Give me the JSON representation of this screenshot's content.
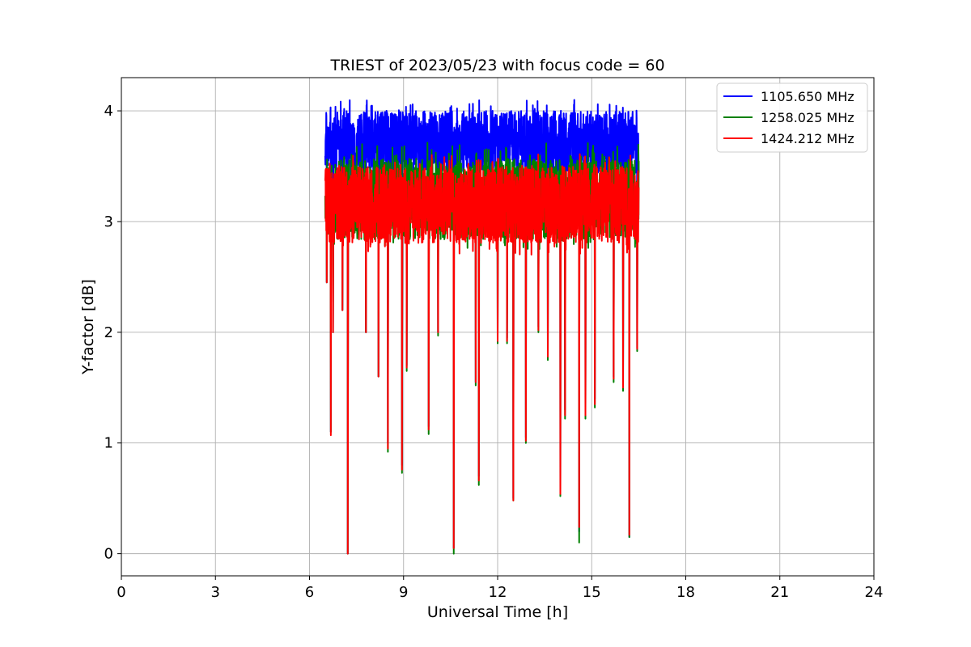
{
  "chart_data": {
    "type": "line",
    "title": "TRIEST of 2023/05/23 with focus code = 60",
    "xlabel": "Universal Time [h]",
    "ylabel": "Y-factor [dB]",
    "xlim": [
      0,
      24
    ],
    "ylim": [
      -0.2,
      4.3
    ],
    "xticks": [
      0,
      3,
      6,
      9,
      12,
      15,
      18,
      21,
      24
    ],
    "yticks": [
      0,
      1,
      2,
      3,
      4
    ],
    "grid": true,
    "legend_position": "top-right",
    "time_range": [
      6.5,
      16.5
    ],
    "series": [
      {
        "name": "1105.650 MHz",
        "color": "#0000ff",
        "baseline": 3.72,
        "noise_range": [
          3.35,
          4.1
        ],
        "dips": [
          [
            6.55,
            2.45
          ],
          [
            6.68,
            1.1
          ],
          [
            6.75,
            2.0
          ],
          [
            7.05,
            2.2
          ],
          [
            7.22,
            0.0
          ],
          [
            7.8,
            2.0
          ],
          [
            8.2,
            1.6
          ],
          [
            8.5,
            1.0
          ],
          [
            8.95,
            0.8
          ],
          [
            9.1,
            1.7
          ],
          [
            9.8,
            1.15
          ],
          [
            10.1,
            2.0
          ],
          [
            10.6,
            0.05
          ],
          [
            11.3,
            1.55
          ],
          [
            11.4,
            0.7
          ],
          [
            12.0,
            1.95
          ],
          [
            12.3,
            1.95
          ],
          [
            12.5,
            0.5
          ],
          [
            12.9,
            1.05
          ],
          [
            13.3,
            2.05
          ],
          [
            13.6,
            1.8
          ],
          [
            14.0,
            0.55
          ],
          [
            14.15,
            1.3
          ],
          [
            14.6,
            0.2
          ],
          [
            14.8,
            1.3
          ],
          [
            15.1,
            1.4
          ],
          [
            15.7,
            1.6
          ],
          [
            16.0,
            1.5
          ],
          [
            16.2,
            0.15
          ],
          [
            16.45,
            1.85
          ]
        ]
      },
      {
        "name": "1258.025 MHz",
        "color": "#008000",
        "baseline": 3.2,
        "noise_range": [
          2.75,
          3.72
        ],
        "dips": [
          [
            6.55,
            2.45
          ],
          [
            6.68,
            1.1
          ],
          [
            6.75,
            2.0
          ],
          [
            7.05,
            2.2
          ],
          [
            7.22,
            0.0
          ],
          [
            7.8,
            2.0
          ],
          [
            8.2,
            1.6
          ],
          [
            8.5,
            0.92
          ],
          [
            8.95,
            0.73
          ],
          [
            9.1,
            1.65
          ],
          [
            9.8,
            1.08
          ],
          [
            10.1,
            1.97
          ],
          [
            10.6,
            0.0
          ],
          [
            11.3,
            1.52
          ],
          [
            11.4,
            0.62
          ],
          [
            12.0,
            1.9
          ],
          [
            12.3,
            1.9
          ],
          [
            12.5,
            0.48
          ],
          [
            12.9,
            1.0
          ],
          [
            13.3,
            2.0
          ],
          [
            13.6,
            1.75
          ],
          [
            14.0,
            0.52
          ],
          [
            14.15,
            1.22
          ],
          [
            14.6,
            0.1
          ],
          [
            14.8,
            1.22
          ],
          [
            15.1,
            1.32
          ],
          [
            15.7,
            1.55
          ],
          [
            16.0,
            1.47
          ],
          [
            16.2,
            0.15
          ],
          [
            16.45,
            1.83
          ]
        ]
      },
      {
        "name": "1424.212 MHz",
        "color": "#ff0000",
        "baseline": 3.15,
        "noise_range": [
          2.7,
          3.62
        ],
        "dips": [
          [
            6.55,
            2.45
          ],
          [
            6.68,
            1.07
          ],
          [
            6.75,
            2.0
          ],
          [
            7.05,
            2.2
          ],
          [
            7.22,
            0.0
          ],
          [
            7.8,
            2.0
          ],
          [
            8.2,
            1.6
          ],
          [
            8.5,
            0.95
          ],
          [
            8.95,
            0.76
          ],
          [
            9.1,
            1.68
          ],
          [
            9.8,
            1.12
          ],
          [
            10.1,
            2.0
          ],
          [
            10.6,
            0.05
          ],
          [
            11.3,
            1.55
          ],
          [
            11.4,
            0.66
          ],
          [
            12.0,
            1.92
          ],
          [
            12.3,
            1.92
          ],
          [
            12.5,
            0.48
          ],
          [
            12.9,
            1.02
          ],
          [
            13.3,
            2.02
          ],
          [
            13.6,
            1.78
          ],
          [
            14.0,
            0.54
          ],
          [
            14.15,
            1.25
          ],
          [
            14.6,
            0.24
          ],
          [
            14.8,
            1.25
          ],
          [
            15.1,
            1.35
          ],
          [
            15.7,
            1.58
          ],
          [
            16.0,
            1.5
          ],
          [
            16.2,
            0.17
          ],
          [
            16.45,
            1.85
          ]
        ]
      }
    ]
  }
}
